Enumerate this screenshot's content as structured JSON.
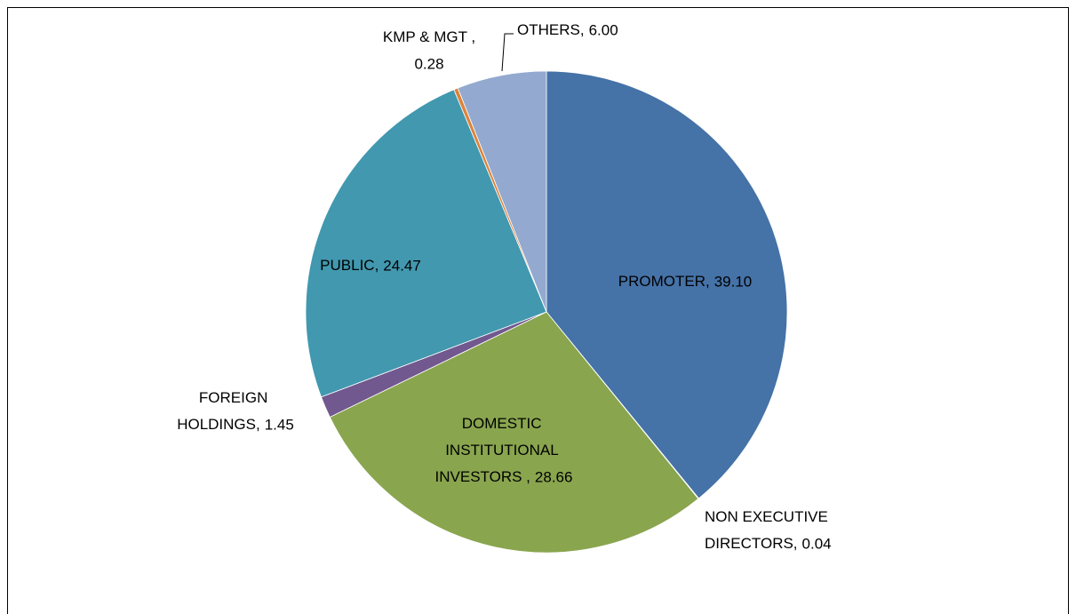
{
  "chart_data": {
    "type": "pie",
    "categories": [
      "PROMOTER,",
      "NON EXECUTIVE DIRECTORS,",
      "DOMESTIC INSTITUTIONAL INVESTORS ,",
      "FOREIGN HOLDINGS,",
      "PUBLIC,",
      "KMP & MGT ,",
      "OTHERS,"
    ],
    "values": [
      39.1,
      0.04,
      28.66,
      1.45,
      24.47,
      0.28,
      6.0
    ],
    "value_labels": [
      "39.10",
      "0.04",
      "28.66",
      "1.45",
      "24.47",
      "0.28",
      "6.00"
    ],
    "colors": [
      "#4572a7",
      "#aa4643",
      "#89a54e",
      "#71588f",
      "#4198af",
      "#db843d",
      "#93a9cf"
    ]
  }
}
